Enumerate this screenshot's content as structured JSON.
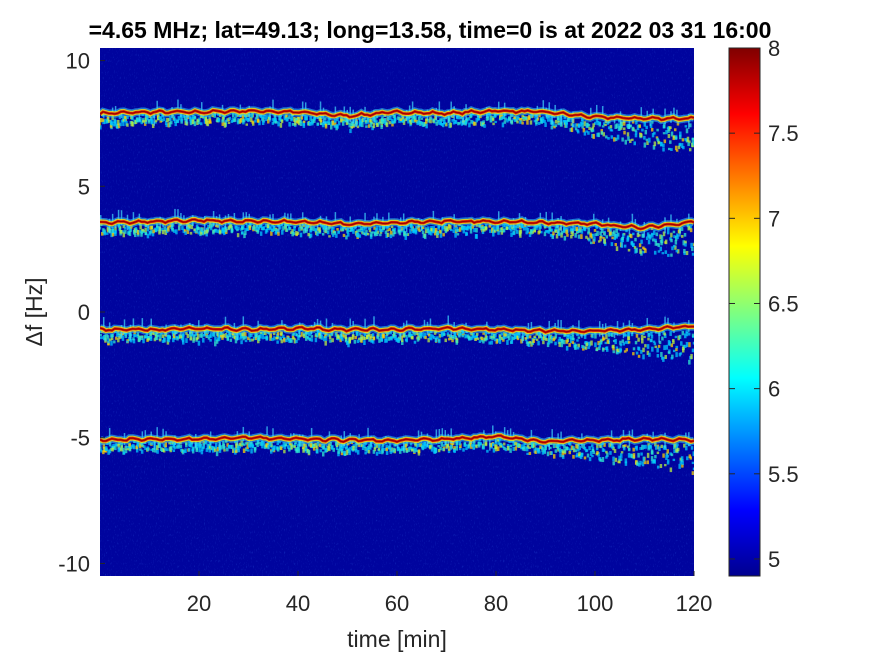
{
  "chart_data": {
    "type": "heatmap",
    "title": "=4.65 MHz;  lat=49.13; long=13.58, time=0 is at 2022 03 31 16:00",
    "xlabel": "time [min]",
    "ylabel": "Δf [Hz]",
    "xlim": [
      0,
      120
    ],
    "ylim": [
      -10.5,
      10.5
    ],
    "x_ticks": [
      20,
      40,
      60,
      80,
      100,
      120
    ],
    "y_ticks": [
      10,
      5,
      0,
      -5,
      -10
    ],
    "colorbar": {
      "colormap": "jet",
      "clim": [
        4.9,
        8
      ],
      "ticks": [
        8,
        7.5,
        7,
        6.5,
        6,
        5.5,
        5
      ]
    },
    "series": [
      {
        "time": [
          0,
          10,
          20,
          30,
          40,
          50,
          60,
          70,
          80,
          90,
          100,
          110,
          120
        ],
        "freq": [
          7.9,
          7.95,
          7.95,
          8.0,
          7.95,
          7.8,
          7.95,
          7.9,
          8.0,
          7.95,
          7.75,
          7.7,
          7.7
        ]
      },
      {
        "time": [
          0,
          10,
          20,
          30,
          40,
          50,
          60,
          70,
          80,
          90,
          100,
          110,
          120
        ],
        "freq": [
          3.55,
          3.6,
          3.65,
          3.6,
          3.6,
          3.5,
          3.55,
          3.6,
          3.6,
          3.55,
          3.5,
          3.35,
          3.6
        ]
      },
      {
        "time": [
          0,
          10,
          20,
          30,
          40,
          50,
          60,
          70,
          80,
          90,
          100,
          110,
          120
        ],
        "freq": [
          -0.7,
          -0.7,
          -0.65,
          -0.7,
          -0.65,
          -0.7,
          -0.7,
          -0.65,
          -0.7,
          -0.75,
          -0.75,
          -0.7,
          -0.55
        ]
      },
      {
        "time": [
          0,
          10,
          20,
          30,
          40,
          50,
          60,
          70,
          80,
          90,
          100,
          110,
          120
        ],
        "freq": [
          -5.1,
          -5.05,
          -5.05,
          -5.0,
          -5.05,
          -5.1,
          -5.1,
          -5.05,
          -4.95,
          -5.15,
          -5.1,
          -5.05,
          -5.1
        ]
      }
    ]
  }
}
